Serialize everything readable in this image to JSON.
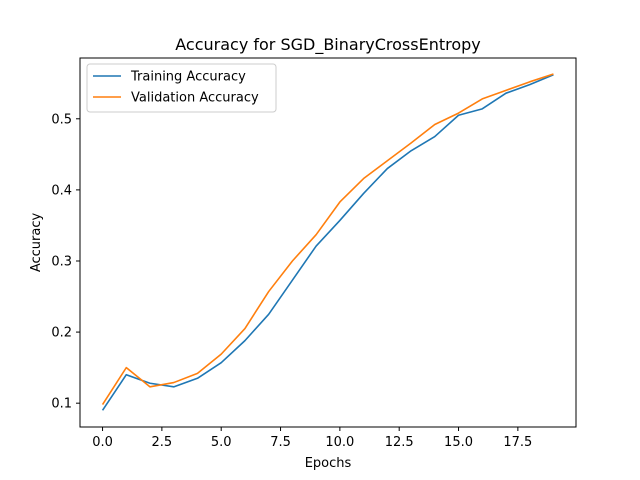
{
  "chart_data": {
    "type": "line",
    "title": "Accuracy for SGD_BinaryCrossEntropy",
    "xlabel": "Epochs",
    "ylabel": "Accuracy",
    "xlim": [
      -0.95,
      19.95
    ],
    "ylim": [
      0.0665,
      0.5855
    ],
    "xticks": [
      0,
      2.5,
      5,
      7.5,
      10,
      12.5,
      15,
      17.5
    ],
    "xtick_labels": [
      "0.0",
      "2.5",
      "5.0",
      "7.5",
      "10.0",
      "12.5",
      "15.0",
      "17.5"
    ],
    "yticks": [
      0.1,
      0.2,
      0.3,
      0.4,
      0.5
    ],
    "ytick_labels": [
      "0.1",
      "0.2",
      "0.3",
      "0.4",
      "0.5"
    ],
    "grid": false,
    "legend_position": "top-left",
    "x": [
      0,
      1,
      2,
      3,
      4,
      5,
      6,
      7,
      8,
      9,
      10,
      11,
      12,
      13,
      14,
      15,
      16,
      17,
      18,
      19
    ],
    "series": [
      {
        "name": "Training Accuracy",
        "color": "#1f77b4",
        "values": [
          0.09,
          0.14,
          0.128,
          0.123,
          0.135,
          0.157,
          0.188,
          0.225,
          0.273,
          0.321,
          0.357,
          0.395,
          0.43,
          0.455,
          0.475,
          0.505,
          0.514,
          0.536,
          0.548,
          0.562
        ]
      },
      {
        "name": "Validation Accuracy",
        "color": "#ff7f0e",
        "values": [
          0.098,
          0.15,
          0.123,
          0.129,
          0.142,
          0.169,
          0.205,
          0.257,
          0.3,
          0.337,
          0.383,
          0.416,
          0.441,
          0.466,
          0.492,
          0.508,
          0.528,
          0.54,
          0.552,
          0.563
        ]
      }
    ]
  }
}
